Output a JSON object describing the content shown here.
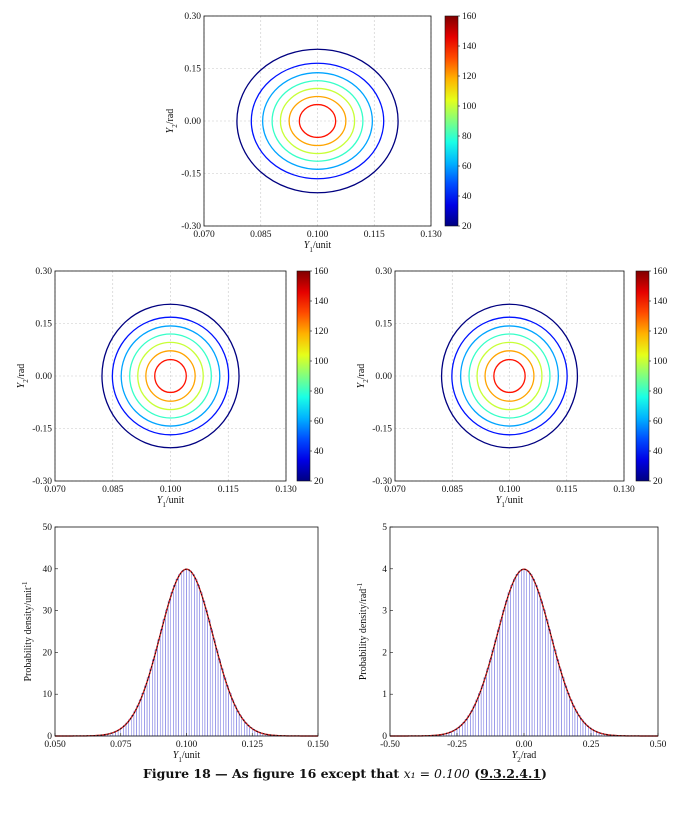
{
  "caption": {
    "prefix": "Figure 18 — As figure 16 except that ",
    "math": "x₁ = 0.100",
    "open": " (",
    "ref": "9.3.2.4.1",
    "close": ")"
  },
  "colors": {
    "axis": "#111111",
    "grid": "#c8c8c8",
    "histogram_bars": "#7070e0",
    "pdf_curve": "#d42020",
    "pdf_dotted": "#111111",
    "colormap": "jet"
  },
  "chart_data": [
    {
      "id": "top-contour",
      "type": "contour",
      "xlabel": "Y1/unit",
      "ylabel": "Y2/rad",
      "xlim": [
        0.07,
        0.13
      ],
      "ylim": [
        -0.3,
        0.3
      ],
      "xticks": [
        "0.070",
        "0.085",
        "0.100",
        "0.115",
        "0.130"
      ],
      "yticks": [
        "-0.30",
        "-0.15",
        "0.00",
        "0.15",
        "0.30"
      ],
      "grid": true,
      "center": [
        0.1,
        0.0
      ],
      "contours": [
        {
          "level": 20,
          "x_halfwidth": 0.0213,
          "y_halfwidth": 0.205
        },
        {
          "level": 40,
          "x_halfwidth": 0.0175,
          "y_halfwidth": 0.165
        },
        {
          "level": 60,
          "x_halfwidth": 0.0145,
          "y_halfwidth": 0.138
        },
        {
          "level": 80,
          "x_halfwidth": 0.012,
          "y_halfwidth": 0.115
        },
        {
          "level": 100,
          "x_halfwidth": 0.0098,
          "y_halfwidth": 0.093
        },
        {
          "level": 120,
          "x_halfwidth": 0.0075,
          "y_halfwidth": 0.07
        },
        {
          "level": 140,
          "x_halfwidth": 0.0048,
          "y_halfwidth": 0.047
        }
      ],
      "colorbar": {
        "range": [
          20,
          160
        ],
        "ticks": [
          "20",
          "40",
          "60",
          "80",
          "100",
          "120",
          "140",
          "160"
        ]
      }
    },
    {
      "id": "mid-left-contour",
      "type": "contour",
      "xlabel": "Y1/unit",
      "ylabel": "Y2/rad",
      "xlim": [
        0.07,
        0.13
      ],
      "ylim": [
        -0.3,
        0.3
      ],
      "xticks": [
        "0.070",
        "0.085",
        "0.100",
        "0.115",
        "0.130"
      ],
      "yticks": [
        "-0.30",
        "-0.15",
        "0.00",
        "0.15",
        "0.30"
      ],
      "grid": true,
      "center": [
        0.1,
        0.0
      ],
      "contours": [
        {
          "level": 20,
          "x_halfwidth": 0.0178,
          "y_halfwidth": 0.205
        },
        {
          "level": 40,
          "x_halfwidth": 0.0151,
          "y_halfwidth": 0.168
        },
        {
          "level": 60,
          "x_halfwidth": 0.0128,
          "y_halfwidth": 0.143
        },
        {
          "level": 80,
          "x_halfwidth": 0.0106,
          "y_halfwidth": 0.12
        },
        {
          "level": 100,
          "x_halfwidth": 0.0085,
          "y_halfwidth": 0.096
        },
        {
          "level": 120,
          "x_halfwidth": 0.0064,
          "y_halfwidth": 0.072
        },
        {
          "level": 140,
          "x_halfwidth": 0.0041,
          "y_halfwidth": 0.047
        }
      ],
      "colorbar": {
        "range": [
          20,
          160
        ],
        "ticks": [
          "20",
          "40",
          "60",
          "80",
          "100",
          "120",
          "140",
          "160"
        ]
      }
    },
    {
      "id": "mid-right-contour",
      "type": "contour",
      "xlabel": "Y1/unit",
      "ylabel": "Y2/rad",
      "xlim": [
        0.07,
        0.13
      ],
      "ylim": [
        -0.3,
        0.3
      ],
      "xticks": [
        "0.070",
        "0.085",
        "0.100",
        "0.115",
        "0.130"
      ],
      "yticks": [
        "-0.30",
        "-0.15",
        "0.00",
        "0.15",
        "0.30"
      ],
      "grid": true,
      "center": [
        0.1,
        0.0
      ],
      "contours": [
        {
          "level": 20,
          "x_halfwidth": 0.0178,
          "y_halfwidth": 0.205
        },
        {
          "level": 40,
          "x_halfwidth": 0.0151,
          "y_halfwidth": 0.168
        },
        {
          "level": 60,
          "x_halfwidth": 0.0128,
          "y_halfwidth": 0.143
        },
        {
          "level": 80,
          "x_halfwidth": 0.0106,
          "y_halfwidth": 0.12
        },
        {
          "level": 100,
          "x_halfwidth": 0.0085,
          "y_halfwidth": 0.096
        },
        {
          "level": 120,
          "x_halfwidth": 0.0064,
          "y_halfwidth": 0.072
        },
        {
          "level": 140,
          "x_halfwidth": 0.0041,
          "y_halfwidth": 0.047
        }
      ],
      "colorbar": {
        "range": [
          20,
          160
        ],
        "ticks": [
          "20",
          "40",
          "60",
          "80",
          "100",
          "120",
          "140",
          "160"
        ]
      }
    },
    {
      "id": "bottom-left-histogram",
      "type": "histogram",
      "xlabel": "Y1/unit",
      "ylabel": "Probability density/unit⁻¹",
      "xlim": [
        0.05,
        0.15
      ],
      "ylim": [
        0,
        50
      ],
      "xticks": [
        "0.050",
        "0.075",
        "0.100",
        "0.125",
        "0.150"
      ],
      "yticks": [
        "0",
        "10",
        "20",
        "30",
        "40",
        "50"
      ],
      "grid": false,
      "distribution": {
        "mean": 0.1,
        "sd": 0.01,
        "peak": 39.9
      },
      "bins": 80,
      "overlays": [
        "histogram",
        "solid-curve",
        "dotted-curve"
      ]
    },
    {
      "id": "bottom-right-histogram",
      "type": "histogram",
      "xlabel": "Y2/rad",
      "ylabel": "Probability density/rad⁻¹",
      "xlim": [
        -0.5,
        0.5
      ],
      "ylim": [
        0,
        5
      ],
      "xticks": [
        "-0.50",
        "-0.25",
        "0.00",
        "0.25",
        "0.50"
      ],
      "yticks": [
        "0",
        "1",
        "2",
        "3",
        "4",
        "5"
      ],
      "grid": false,
      "distribution": {
        "mean": 0.0,
        "sd": 0.1,
        "peak": 3.99
      },
      "bins": 80,
      "overlays": [
        "histogram",
        "solid-curve",
        "dotted-curve"
      ]
    }
  ]
}
